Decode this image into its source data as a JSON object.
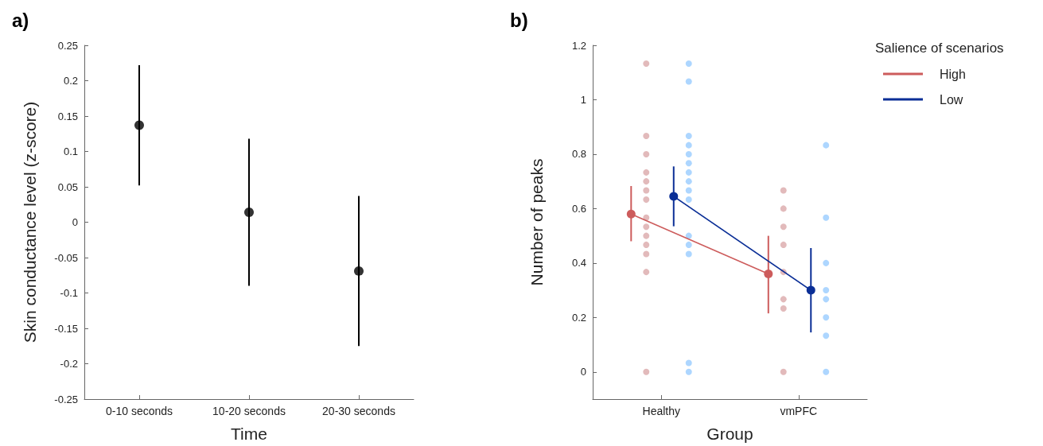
{
  "chart_data": [
    {
      "type": "scatter",
      "title": "a)",
      "xlabel": "Time",
      "ylabel": "Skin conductance level (z-score)",
      "categories": [
        "0-10 seconds",
        "10-20 seconds",
        "20-30 seconds"
      ],
      "values": [
        0.137,
        0.014,
        -0.069
      ],
      "errors": [
        [
          0.052,
          0.222
        ],
        [
          -0.09,
          0.118
        ],
        [
          -0.175,
          0.037
        ]
      ],
      "color": "#000000",
      "marker": "circle",
      "ylim": [
        -0.25,
        0.25
      ],
      "yticks": [
        -0.25,
        -0.2,
        -0.15,
        -0.1,
        -0.05,
        0,
        0.05,
        0.1,
        0.15,
        0.2,
        0.25
      ],
      "grid": false,
      "legend": false
    },
    {
      "type": "line",
      "title": "b)",
      "xlabel": "Group",
      "ylabel": "Number of peaks",
      "legend_title": "Salience of scenarios",
      "categories": [
        "Healthy",
        "vmPFC"
      ],
      "ylim": [
        -0.1,
        1.2
      ],
      "yticks": [
        0,
        0.2,
        0.4,
        0.6,
        0.8,
        1,
        1.2
      ],
      "grid": false,
      "legend": "top right",
      "marker": "circle",
      "series": [
        {
          "name": "High",
          "type": "line",
          "color": "#cd5c5c",
          "values": [
            0.58,
            0.36
          ],
          "errors": [
            [
              0.48,
              0.683
            ],
            [
              0.215,
              0.5
            ]
          ]
        },
        {
          "name": "Low",
          "type": "line",
          "color": "#0a2e96",
          "values": [
            0.645,
            0.3
          ],
          "errors": [
            [
              0.535,
              0.755
            ],
            [
              0.145,
              0.455
            ]
          ]
        },
        {
          "type": "scatter",
          "color": "#dba9aa",
          "x": [
            "Healthy",
            "Healthy",
            "Healthy",
            "Healthy",
            "Healthy",
            "Healthy",
            "Healthy",
            "Healthy",
            "Healthy",
            "Healthy",
            "Healthy",
            "Healthy",
            "Healthy",
            "Healthy",
            "vmPFC",
            "vmPFC",
            "vmPFC",
            "vmPFC",
            "vmPFC",
            "vmPFC",
            "vmPFC",
            "vmPFC"
          ],
          "values": [
            1.133,
            0.867,
            0.8,
            0.733,
            0.7,
            0.667,
            0.633,
            0.567,
            0.533,
            0.5,
            0.467,
            0.433,
            0.367,
            0,
            0.667,
            0.6,
            0.533,
            0.467,
            0.367,
            0.267,
            0.233,
            0
          ]
        },
        {
          "type": "scatter",
          "color": "#99ccff",
          "x": [
            "Healthy",
            "Healthy",
            "Healthy",
            "Healthy",
            "Healthy",
            "Healthy",
            "Healthy",
            "Healthy",
            "Healthy",
            "Healthy",
            "Healthy",
            "Healthy",
            "Healthy",
            "Healthy",
            "Healthy",
            "vmPFC",
            "vmPFC",
            "vmPFC",
            "vmPFC",
            "vmPFC",
            "vmPFC",
            "vmPFC",
            "vmPFC"
          ],
          "values": [
            1.133,
            1.067,
            0.867,
            0.833,
            0.8,
            0.767,
            0.733,
            0.7,
            0.667,
            0.633,
            0.5,
            0.467,
            0.433,
            0.033,
            0,
            0.833,
            0.567,
            0.4,
            0.3,
            0.267,
            0.2,
            0.133,
            0
          ]
        }
      ]
    }
  ]
}
